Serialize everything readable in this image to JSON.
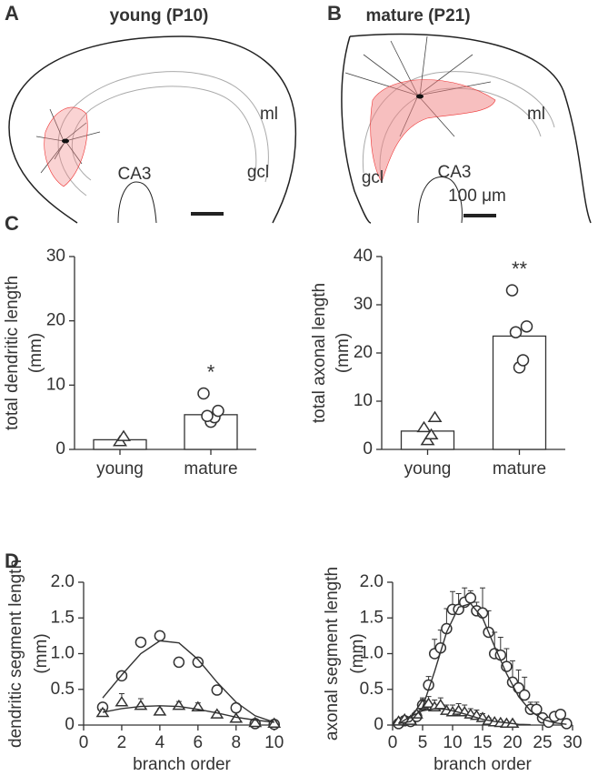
{
  "panels": [
    {
      "letter": "A",
      "title": "young (P10)",
      "labels": [
        "ml",
        "gcl",
        "CA3"
      ]
    },
    {
      "letter": "B",
      "title": "mature (P21)",
      "labels": [
        "ml",
        "gcl",
        "CA3"
      ],
      "scale_bar": "100 μm"
    }
  ],
  "panel_letters": [
    "C",
    "D"
  ],
  "chart_data": [
    {
      "type": "bar",
      "ylabel": [
        "total dendritic length",
        "(mm)"
      ],
      "categories": [
        "young",
        "mature"
      ],
      "values": [
        1.5,
        5.4
      ],
      "color": "#ffffff",
      "edgecolor": "#333333",
      "points": [
        [
          1.2,
          2.0
        ],
        [
          4.3,
          5.0,
          5.2,
          6.0,
          8.7
        ]
      ],
      "point_markers": [
        "triangle",
        "circle"
      ],
      "annotation": "*",
      "ylim": [
        0,
        30
      ],
      "yticks": [
        0,
        10,
        20,
        30
      ]
    },
    {
      "type": "bar",
      "ylabel": [
        "total axonal length",
        "(mm)"
      ],
      "categories": [
        "young",
        "mature"
      ],
      "values": [
        3.8,
        23.5
      ],
      "color": "#ffffff",
      "edgecolor": "#333333",
      "points": [
        [
          1.8,
          3.0,
          4.5,
          6.6
        ],
        [
          17.0,
          18.5,
          24.3,
          25.5,
          33.0
        ]
      ],
      "point_markers": [
        "triangle",
        "circle"
      ],
      "annotation": "**",
      "ylim": [
        0,
        40
      ],
      "yticks": [
        0,
        10,
        20,
        30,
        40
      ]
    },
    {
      "type": "scatter",
      "xlabel": "branch order",
      "ylabel": [
        "dendritic segment length",
        "(mm)"
      ],
      "xlim": [
        0,
        10.3
      ],
      "xticks": [
        0,
        2,
        4,
        6,
        8,
        10
      ],
      "ylim": [
        0,
        2
      ],
      "yticks": [
        {
          "value": 0,
          "label": "0"
        },
        {
          "value": 0.5,
          "label": "0.5"
        },
        {
          "value": 1,
          "label": "1.0"
        },
        {
          "value": 1.5,
          "label": "1.5"
        },
        {
          "value": 2,
          "label": "2.0"
        }
      ],
      "color": "#333333",
      "series": [
        {
          "marker": "circle",
          "x": [
            1,
            2,
            3,
            4,
            5,
            6,
            7,
            8,
            9,
            10
          ],
          "values": [
            0.25,
            0.69,
            1.16,
            1.25,
            0.88,
            0.88,
            0.49,
            0.24,
            0.02,
            0.01
          ],
          "errors": [
            0.04,
            0.04,
            0.04,
            0.05,
            0.04,
            0.04,
            0.04,
            0.04,
            0.01,
            0.01
          ]
        },
        {
          "marker": "triangle",
          "x": [
            1,
            2,
            3,
            4,
            5,
            6,
            7,
            8,
            9,
            10
          ],
          "values": [
            0.17,
            0.32,
            0.27,
            0.19,
            0.27,
            0.25,
            0.15,
            0.09,
            0.03,
            0.02
          ],
          "errors": [
            0.05,
            0.12,
            0.1,
            0.04,
            0.06,
            0.06,
            0.04,
            0.03,
            0.01,
            0.01
          ]
        }
      ],
      "fits": [
        {
          "x": [
            1,
            2,
            3,
            4,
            5,
            6,
            7,
            8,
            9,
            10
          ],
          "values": [
            0.38,
            0.7,
            1.0,
            1.18,
            1.15,
            0.92,
            0.6,
            0.32,
            0.13,
            0.04
          ]
        },
        {
          "x": [
            1,
            2,
            3,
            4,
            5,
            6,
            7,
            8,
            9,
            10
          ],
          "values": [
            0.18,
            0.23,
            0.26,
            0.27,
            0.26,
            0.22,
            0.17,
            0.11,
            0.07,
            0.04
          ]
        }
      ]
    },
    {
      "type": "scatter",
      "xlabel": "branch order",
      "ylabel": [
        "axonal segment length",
        "(mm)"
      ],
      "xlim": [
        0,
        30
      ],
      "xticks": [
        0,
        5,
        10,
        15,
        20,
        25,
        30
      ],
      "ylim": [
        0,
        2
      ],
      "yticks": [
        {
          "value": 0,
          "label": "0"
        },
        {
          "value": 0.5,
          "label": "0.5"
        },
        {
          "value": 1,
          "label": "1.0"
        },
        {
          "value": 1.5,
          "label": "1.5"
        },
        {
          "value": 2,
          "label": "2.0"
        }
      ],
      "color": "#333333",
      "series": [
        {
          "marker": "circle",
          "x": [
            1,
            2,
            3,
            4,
            5,
            6,
            7,
            8,
            9,
            10,
            11,
            12,
            13,
            14,
            15,
            16,
            17,
            18,
            19,
            20,
            21,
            22,
            23,
            24,
            25,
            26,
            27,
            28,
            29
          ],
          "values": [
            0.02,
            0.06,
            0.05,
            0.12,
            0.28,
            0.56,
            1.0,
            1.08,
            1.35,
            1.62,
            1.62,
            1.72,
            1.78,
            1.6,
            1.57,
            1.3,
            1.0,
            0.98,
            0.82,
            0.6,
            0.52,
            0.42,
            0.22,
            0.22,
            0.1,
            0.04,
            0.12,
            0.15,
            0.02
          ],
          "errors": [
            0.02,
            0.03,
            0.03,
            0.05,
            0.1,
            0.12,
            0.2,
            0.25,
            0.28,
            0.25,
            0.22,
            0.2,
            0.1,
            0.12,
            0.35,
            0.3,
            0.3,
            0.25,
            0.25,
            0.3,
            0.25,
            0.25,
            0.1,
            0.1,
            0.05,
            0.03,
            0.05,
            0.05,
            0.02
          ]
        },
        {
          "marker": "triangle",
          "x": [
            1,
            2,
            3,
            4,
            5,
            6,
            7,
            8,
            9,
            10,
            11,
            12,
            13,
            14,
            15,
            16,
            17,
            18,
            19,
            20
          ],
          "values": [
            0.05,
            0.08,
            0.06,
            0.15,
            0.28,
            0.3,
            0.25,
            0.28,
            0.2,
            0.18,
            0.2,
            0.18,
            0.15,
            0.13,
            0.1,
            0.06,
            0.04,
            0.03,
            0.02,
            0.02
          ],
          "errors": [
            0.02,
            0.03,
            0.03,
            0.05,
            0.08,
            0.1,
            0.1,
            0.1,
            0.08,
            0.1,
            0.1,
            0.1,
            0.08,
            0.08,
            0.06,
            0.04,
            0.03,
            0.02,
            0.02,
            0.02
          ]
        }
      ],
      "fits": [
        {
          "x": [
            1,
            3,
            5,
            7,
            9,
            11,
            13,
            15,
            17,
            19,
            21,
            23,
            25,
            27,
            29
          ],
          "values": [
            0.02,
            0.05,
            0.25,
            0.75,
            1.3,
            1.65,
            1.7,
            1.5,
            1.1,
            0.72,
            0.4,
            0.2,
            0.08,
            0.03,
            0.01
          ]
        },
        {
          "x": [
            1,
            3,
            5,
            7,
            9,
            11,
            13,
            15,
            17,
            19,
            21,
            23
          ],
          "values": [
            0.02,
            0.12,
            0.2,
            0.23,
            0.22,
            0.18,
            0.13,
            0.08,
            0.05,
            0.03,
            0.01,
            0.005
          ]
        }
      ]
    }
  ]
}
